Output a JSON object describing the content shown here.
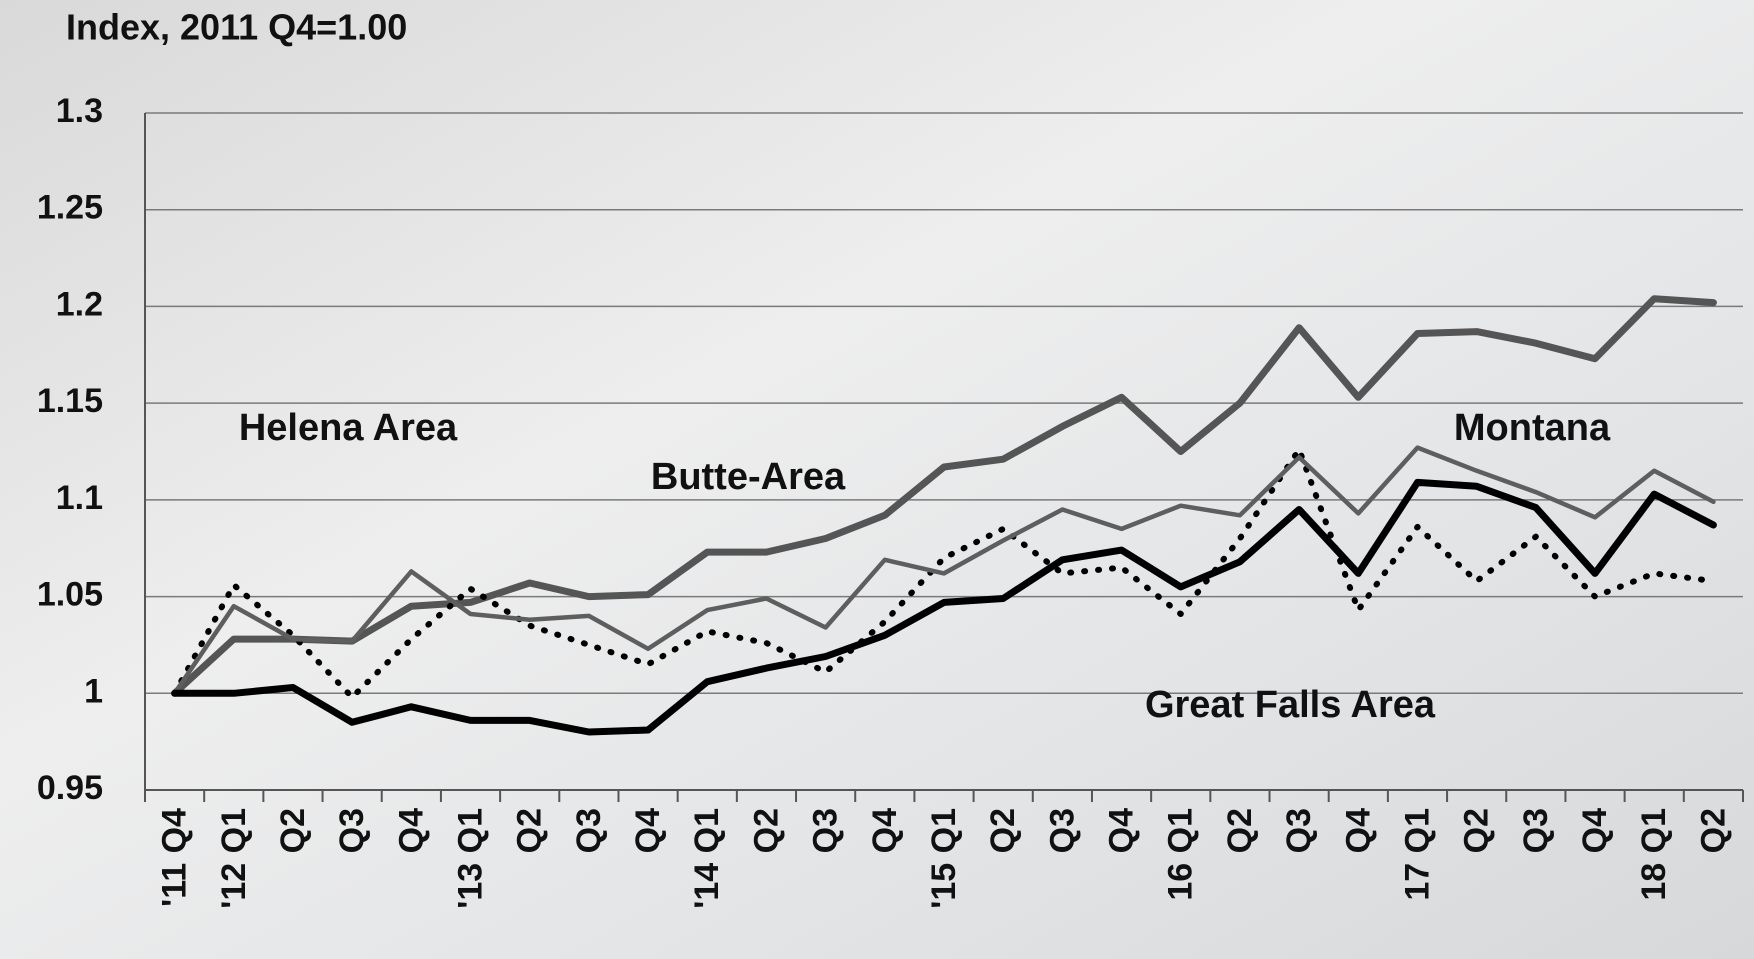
{
  "chart_data": {
    "type": "line",
    "y_label": "Index, 2011 Q4=1.00",
    "categories": [
      "'11 Q4",
      "'12 Q1",
      "Q2",
      "Q3",
      "Q4",
      "'13 Q1",
      "Q2",
      "Q3",
      "Q4",
      "'14 Q1",
      "Q2",
      "Q3",
      "Q4",
      "'15 Q1",
      "Q2",
      "Q3",
      "Q4",
      "16 Q1",
      "Q2",
      "Q3",
      "Q4",
      "17 Q1",
      "Q2",
      "Q3",
      "Q4",
      "18 Q1",
      "Q2"
    ],
    "series": [
      {
        "name": "Helena Area",
        "color": "#555555",
        "values": [
          1.0,
          1.028,
          1.028,
          1.027,
          1.045,
          1.047,
          1.057,
          1.05,
          1.051,
          1.073,
          1.073,
          1.08,
          1.092,
          1.117,
          1.121,
          1.138,
          1.153,
          1.125,
          1.15,
          1.189,
          1.153,
          1.186,
          1.187,
          1.181,
          1.173,
          1.204,
          1.202
        ]
      },
      {
        "name": "Butte-Area",
        "color": "#000000",
        "values": [
          1.0,
          1.056,
          1.03,
          0.998,
          1.028,
          1.054,
          1.035,
          1.025,
          1.015,
          1.032,
          1.026,
          1.011,
          1.037,
          1.07,
          1.085,
          1.062,
          1.065,
          1.041,
          1.08,
          1.126,
          1.043,
          1.086,
          1.058,
          1.081,
          1.05,
          1.062,
          1.058
        ]
      },
      {
        "name": "Montana",
        "color": "#5e5e5e",
        "values": [
          1.0,
          1.045,
          1.028,
          1.027,
          1.063,
          1.041,
          1.038,
          1.04,
          1.023,
          1.043,
          1.049,
          1.034,
          1.069,
          1.062,
          1.079,
          1.095,
          1.085,
          1.097,
          1.092,
          1.122,
          1.093,
          1.127,
          1.115,
          1.104,
          1.091,
          1.115,
          1.099
        ]
      },
      {
        "name": "Great Falls Area",
        "color": "#000000",
        "values": [
          1.0,
          1.0,
          1.003,
          0.985,
          0.993,
          0.986,
          0.986,
          0.98,
          0.981,
          1.006,
          1.013,
          1.019,
          1.03,
          1.047,
          1.049,
          1.069,
          1.074,
          1.055,
          1.068,
          1.095,
          1.062,
          1.109,
          1.107,
          1.096,
          1.062,
          1.103,
          1.087
        ]
      }
    ],
    "ylim": [
      0.95,
      1.3
    ],
    "yticks": [
      0.95,
      1,
      1.05,
      1.1,
      1.15,
      1.2,
      1.25,
      1.3
    ],
    "grid": true
  }
}
